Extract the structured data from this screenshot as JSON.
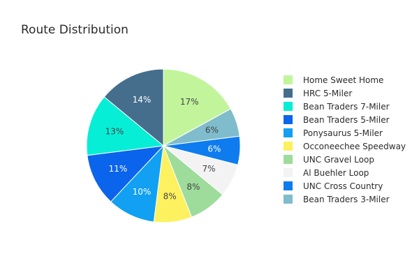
{
  "chart_data": {
    "type": "pie",
    "title": "Route Distribution",
    "labels": [
      "Home Sweet Home",
      "HRC 5-Miler",
      "Bean Traders 7-Miler",
      "Bean Traders 5-Miler",
      "Ponysaurus 5-Miler",
      "Occoneechee Speedway",
      "UNC Gravel Loop",
      "Al Buehler Loop",
      "UNC Cross Country",
      "Bean Traders 3-Miler"
    ],
    "values": [
      17,
      14,
      13,
      11,
      10,
      8,
      8,
      7,
      6,
      6
    ],
    "value_labels": [
      "17%",
      "14%",
      "13%",
      "11%",
      "10%",
      "8%",
      "8%",
      "7%",
      "6%",
      "6%"
    ],
    "colors": [
      "#c2f59b",
      "#456e8d",
      "#07eed6",
      "#0b64ec",
      "#11a0f2",
      "#fdf15f",
      "#9ddc9b",
      "#f3f3f3",
      "#0e7cee",
      "#7fbccc"
    ],
    "label_text_colors": [
      "#444444",
      "#ffffff",
      "#444444",
      "#ffffff",
      "#ffffff",
      "#444444",
      "#444444",
      "#444444",
      "#ffffff",
      "#444444"
    ],
    "slice_order_clockwise_from_top": [
      0,
      9,
      8,
      7,
      6,
      5,
      4,
      3,
      2,
      1
    ],
    "legend_placement": "right"
  }
}
